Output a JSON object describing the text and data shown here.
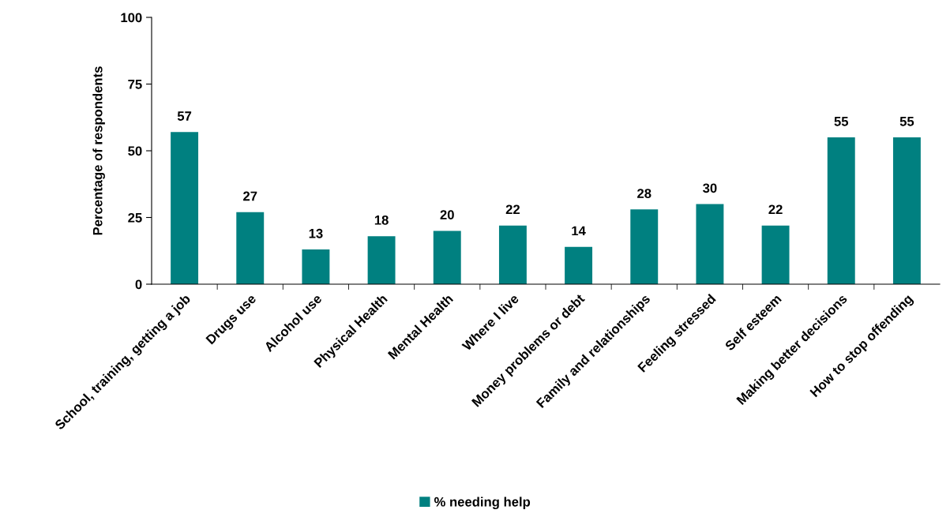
{
  "chart_data": {
    "type": "bar",
    "ylabel": "Percentage of respondents",
    "categories": [
      "School, training, getting a job",
      "Drugs use",
      "Alcohol use",
      "Physical Health",
      "Mental Health",
      "Where I live",
      "Money problems or debt",
      "Family and relationships",
      "Feeling stressed",
      "Self esteem",
      "Making better decisions",
      "How to stop offending"
    ],
    "series": [
      {
        "name": "% needing help",
        "color": "#008080",
        "values": [
          57,
          27,
          13,
          18,
          20,
          22,
          14,
          28,
          30,
          22,
          55,
          55
        ]
      }
    ],
    "data_labels": true,
    "ylim": [
      0,
      100
    ],
    "yticks": [
      0,
      25,
      50,
      75,
      100
    ],
    "grid": false,
    "legend": "bottom"
  }
}
